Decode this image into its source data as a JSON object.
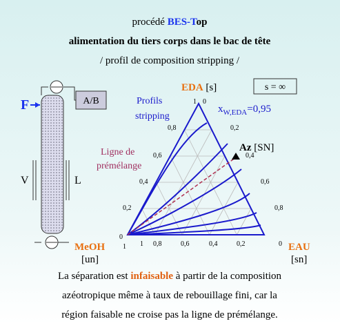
{
  "header": {
    "prefix": "procédé",
    "brand": "BES-T",
    "suffix": "op",
    "subtitle": "alimentation du tiers corps dans le bac de tête",
    "profile": "/ profil de composition stripping /"
  },
  "column": {
    "feed": "F",
    "product": "A/B",
    "vapor": "V",
    "liquid": "L"
  },
  "diagram": {
    "top_vertex": "EDA",
    "top_vertex_tag": "[s]",
    "left_vertex": "MeOH",
    "left_vertex_tag": "[un]",
    "right_vertex": "EAU",
    "right_vertex_tag": "[sn]",
    "azeotrope": "Az",
    "azeotrope_tag": "[SN]",
    "reflux": "s = ∞",
    "profiles_line1": "Profils",
    "profiles_line2": "stripping",
    "composition_x": "x",
    "composition_sub": "W,EDA",
    "composition_value": "=0,95",
    "premix_line1": "Ligne de",
    "premix_line2": "prémélange",
    "left_ticks": [
      "1",
      "0,8",
      "0,6",
      "0,4",
      "0,2",
      "0"
    ],
    "bottom_ticks": [
      "1",
      "0,8",
      "0,6",
      "0,4",
      "0,2",
      "0"
    ],
    "right_ticks": [
      "0",
      "0,2",
      "0,4",
      "0,6",
      "0,8",
      "1"
    ]
  },
  "footer": {
    "start": "La séparation est",
    "keyword": "infaisable",
    "rest1": "à partir de la composition",
    "line2": "azéotropique même à taux de rebouillage fini, car la",
    "line3": "région faisable ne croise pas la ligne de prémélange."
  }
}
